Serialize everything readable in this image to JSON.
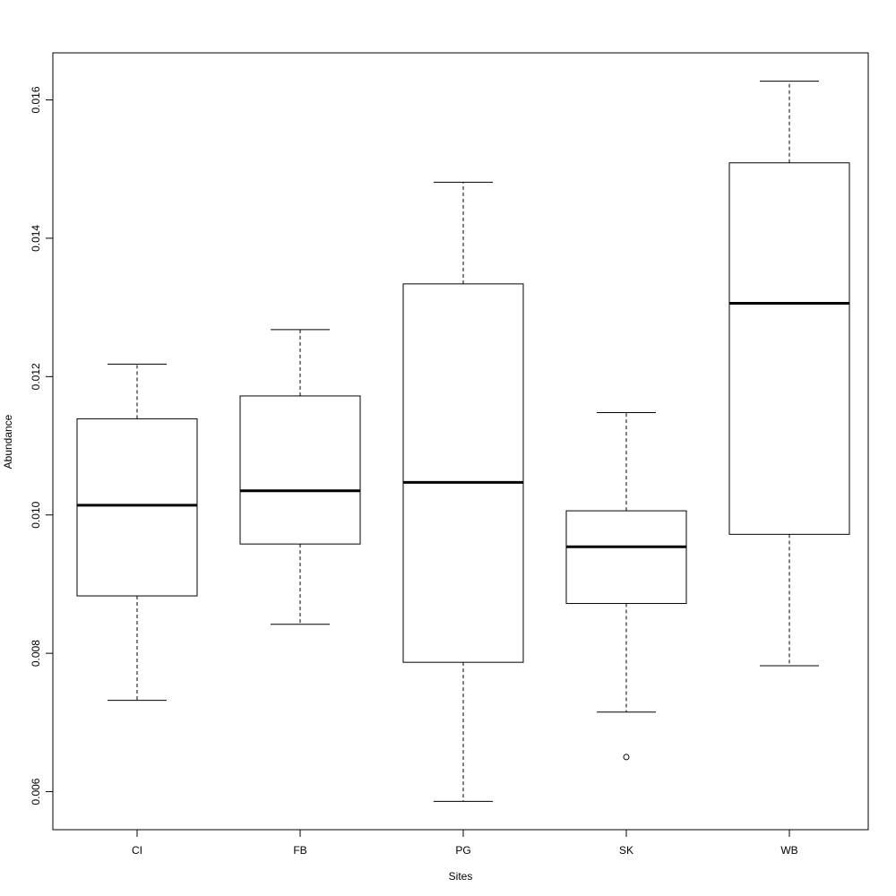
{
  "chart_data": {
    "type": "boxplot",
    "title": "",
    "xlabel": "Sites",
    "ylabel": "Abundance",
    "ylim": [
      0.00545,
      0.01668
    ],
    "yticks": [
      "0.006",
      "0.008",
      "0.010",
      "0.012",
      "0.014",
      "0.016"
    ],
    "ytick_values": [
      0.006,
      0.008,
      0.01,
      0.012,
      0.014,
      0.016
    ],
    "grid": false,
    "categories": [
      "CI",
      "FB",
      "PG",
      "SK",
      "WB"
    ],
    "boxes": [
      {
        "category": "CI",
        "whisker_low": 0.00732,
        "q1": 0.00883,
        "median": 0.01014,
        "q3": 0.01139,
        "whisker_high": 0.01218,
        "outliers": []
      },
      {
        "category": "FB",
        "whisker_low": 0.00842,
        "q1": 0.00958,
        "median": 0.01035,
        "q3": 0.01172,
        "whisker_high": 0.01268,
        "outliers": []
      },
      {
        "category": "PG",
        "whisker_low": 0.00586,
        "q1": 0.00787,
        "median": 0.01047,
        "q3": 0.01334,
        "whisker_high": 0.01481,
        "outliers": []
      },
      {
        "category": "SK",
        "whisker_low": 0.00715,
        "q1": 0.00872,
        "median": 0.00954,
        "q3": 0.01006,
        "whisker_high": 0.01148,
        "outliers": [
          0.0065
        ]
      },
      {
        "category": "WB",
        "whisker_low": 0.00782,
        "q1": 0.00972,
        "median": 0.01306,
        "q3": 0.01509,
        "whisker_high": 0.01627,
        "outliers": []
      }
    ]
  }
}
